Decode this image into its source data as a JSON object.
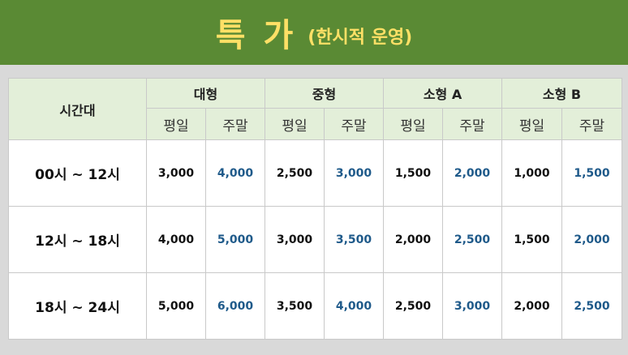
{
  "header": {
    "title": "특 가",
    "subtitle": "(한시적 운영)"
  },
  "colors": {
    "header_bg": "#5a8a34",
    "title_text": "#ffe066",
    "table_header_bg": "#e3efd9",
    "weekend_value": "#1f5a8a"
  },
  "table": {
    "time_header": "시간대",
    "categories": [
      "대형",
      "중형",
      "소형 A",
      "소형 B"
    ],
    "sub_headers": {
      "weekday": "평일",
      "weekend": "주말"
    },
    "rows": [
      {
        "time": "00시 ~ 12시",
        "values": [
          "3,000",
          "4,000",
          "2,500",
          "3,000",
          "1,500",
          "2,000",
          "1,000",
          "1,500"
        ]
      },
      {
        "time": "12시 ~ 18시",
        "values": [
          "4,000",
          "5,000",
          "3,000",
          "3,500",
          "2,000",
          "2,500",
          "1,500",
          "2,000"
        ]
      },
      {
        "time": "18시 ~ 24시",
        "values": [
          "5,000",
          "6,000",
          "3,500",
          "4,000",
          "2,500",
          "3,000",
          "2,000",
          "2,500"
        ]
      }
    ]
  }
}
